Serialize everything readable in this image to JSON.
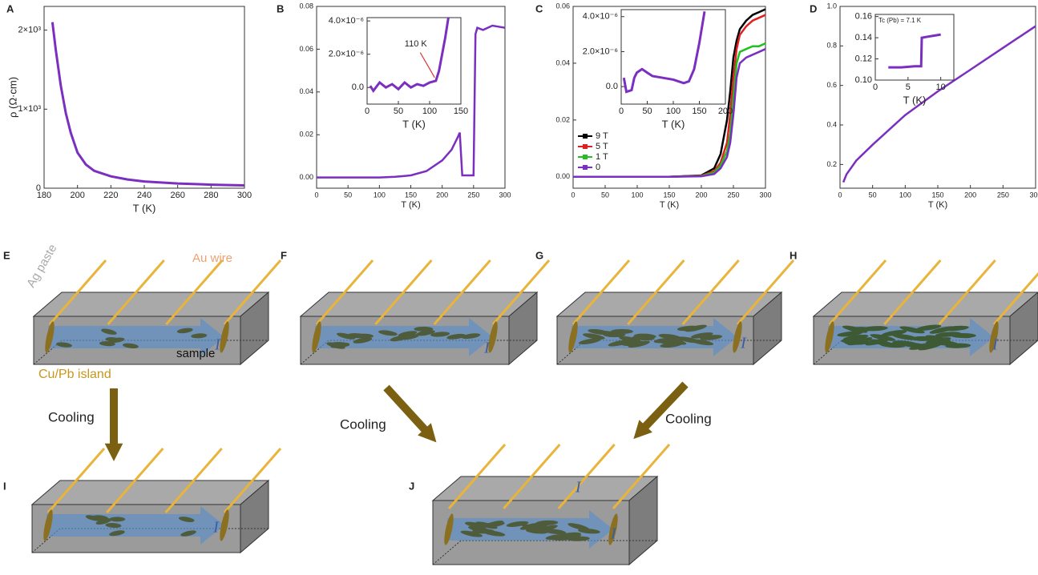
{
  "chart_data": [
    {
      "type": "line",
      "panel": "A",
      "xlabel": "T (K)",
      "ylabel": "ρ (Ω·cm)",
      "xlim": [
        180,
        300
      ],
      "xticks": [
        180,
        200,
        220,
        240,
        260,
        280,
        300
      ],
      "ylim": [
        0,
        2300
      ],
      "yticks": [
        0,
        {
          "value": 1000,
          "label": "1×10³"
        },
        {
          "value": 2000,
          "label": "2×10³"
        }
      ],
      "series": [
        {
          "color": "#7a2fc0",
          "x": [
            185,
            187,
            190,
            193,
            196,
            200,
            205,
            210,
            220,
            230,
            240,
            260,
            280,
            300
          ],
          "values": [
            2100,
            1750,
            1300,
            950,
            700,
            450,
            300,
            220,
            150,
            110,
            85,
            60,
            45,
            35
          ]
        }
      ]
    },
    {
      "type": "line",
      "panel": "B",
      "xlabel": "T (K)",
      "xlim": [
        0,
        300
      ],
      "xticks": [
        0,
        50,
        100,
        150,
        200,
        250,
        300
      ],
      "ylim": [
        -0.005,
        0.08
      ],
      "yticks": [
        {
          "value": 0,
          "label": "0.00"
        },
        0.02,
        0.04,
        0.06,
        0.08
      ],
      "series": [
        {
          "color": "#7a2fc0",
          "x": [
            0,
            25,
            50,
            75,
            100,
            125,
            150,
            175,
            200,
            215,
            225,
            228,
            232,
            240,
            250,
            253,
            256,
            265,
            280,
            300
          ],
          "values": [
            0,
            0,
            0,
            0,
            0,
            0.0003,
            0.001,
            0.003,
            0.008,
            0.013,
            0.019,
            0.021,
            0.001,
            0.001,
            0.001,
            0.067,
            0.07,
            0.069,
            0.071,
            0.07
          ]
        }
      ],
      "inset": {
        "xlabel": "T (K)",
        "xlim": [
          0,
          150
        ],
        "xticks": [
          0,
          50,
          100,
          150
        ],
        "ylim": [
          -1e-06,
          4.2e-06
        ],
        "yticks": [
          {
            "value": 0,
            "label": "0.0"
          },
          {
            "value": 2e-06,
            "label": "2.0×10⁻⁶"
          },
          {
            "value": 4e-06,
            "label": "4.0×10⁻⁶"
          }
        ],
        "annotation": "110 K",
        "series": [
          {
            "color": "#7a2fc0",
            "x": [
              5,
              10,
              20,
              30,
              40,
              50,
              60,
              70,
              80,
              90,
              100,
              110,
              115,
              120,
              125,
              130
            ],
            "values": [
              1e-07,
              -2e-07,
              3e-07,
              0,
              2e-07,
              -1e-07,
              3e-07,
              0,
              2e-07,
              1e-07,
              3e-07,
              4e-07,
              1e-06,
              2e-06,
              3e-06,
              4.2e-06
            ]
          }
        ]
      }
    },
    {
      "type": "line",
      "panel": "C",
      "xlabel": "T (K)",
      "xlim": [
        0,
        300
      ],
      "xticks": [
        0,
        50,
        100,
        150,
        200,
        250,
        300
      ],
      "ylim": [
        -0.004,
        0.06
      ],
      "yticks": [
        {
          "value": 0,
          "label": "0.00"
        },
        0.02,
        0.04,
        0.06
      ],
      "series": [
        {
          "name": "9 T",
          "color": "#000000",
          "x": [
            0,
            50,
            100,
            150,
            200,
            220,
            230,
            240,
            245,
            250,
            255,
            260,
            270,
            280,
            290,
            300
          ],
          "values": [
            0,
            0,
            0,
            0,
            0.0005,
            0.003,
            0.008,
            0.02,
            0.03,
            0.042,
            0.048,
            0.052,
            0.055,
            0.057,
            0.058,
            0.059
          ]
        },
        {
          "name": "5 T",
          "color": "#e02020",
          "x": [
            0,
            50,
            100,
            150,
            200,
            220,
            230,
            240,
            245,
            250,
            255,
            260,
            270,
            280,
            290,
            300
          ],
          "values": [
            0,
            0,
            0,
            0,
            0.0004,
            0.002,
            0.005,
            0.012,
            0.022,
            0.035,
            0.045,
            0.05,
            0.053,
            0.055,
            0.056,
            0.057
          ]
        },
        {
          "name": "1 T",
          "color": "#20c020",
          "x": [
            0,
            50,
            100,
            150,
            200,
            220,
            230,
            240,
            245,
            250,
            255,
            260,
            270,
            280,
            290,
            300
          ],
          "values": [
            0,
            0,
            0,
            0,
            0.0003,
            0.0015,
            0.004,
            0.009,
            0.015,
            0.028,
            0.04,
            0.044,
            0.045,
            0.046,
            0.046,
            0.047
          ]
        },
        {
          "name": "0",
          "color": "#7a2fc0",
          "x": [
            0,
            50,
            100,
            150,
            200,
            220,
            230,
            240,
            245,
            250,
            255,
            260,
            270,
            280,
            290,
            300
          ],
          "values": [
            0,
            0,
            0,
            0,
            0.0002,
            0.001,
            0.003,
            0.007,
            0.012,
            0.022,
            0.035,
            0.04,
            0.042,
            0.043,
            0.044,
            0.045
          ]
        }
      ],
      "inset": {
        "xlabel": "T (K)",
        "xlim": [
          0,
          200
        ],
        "xticks": [
          0,
          50,
          100,
          150,
          200
        ],
        "ylim": [
          -1e-06,
          4.4e-06
        ],
        "yticks": [
          {
            "value": 0,
            "label": "0.0"
          },
          {
            "value": 2e-06,
            "label": "2.0×10⁻⁶"
          },
          {
            "value": 4e-06,
            "label": "4.0×10⁻⁶"
          }
        ],
        "series": [
          {
            "color": "#7a2fc0",
            "x": [
              5,
              10,
              20,
              25,
              30,
              40,
              50,
              60,
              80,
              100,
              120,
              130,
              140,
              150,
              160
            ],
            "values": [
              5e-07,
              -3e-07,
              -2e-07,
              5e-07,
              8e-07,
              1e-06,
              8e-07,
              6e-07,
              5e-07,
              4e-07,
              2e-07,
              3e-07,
              1e-06,
              2.5e-06,
              4.3e-06
            ]
          }
        ]
      }
    },
    {
      "type": "line",
      "panel": "D",
      "xlabel": "T (K)",
      "xlim": [
        0,
        300
      ],
      "xticks": [
        0,
        50,
        100,
        150,
        200,
        250,
        300
      ],
      "ylim": [
        0.08,
        1.0
      ],
      "yticks": [
        0.2,
        0.4,
        0.6,
        0.8,
        {
          "value": 1,
          "label": "1.0"
        }
      ],
      "series": [
        {
          "color": "#7a2fc0",
          "x": [
            5,
            10,
            25,
            50,
            100,
            150,
            200,
            250,
            300
          ],
          "values": [
            0.11,
            0.15,
            0.22,
            0.3,
            0.45,
            0.57,
            0.68,
            0.79,
            0.9
          ]
        }
      ],
      "inset": {
        "xlabel": "T (K)",
        "xlim": [
          0,
          12
        ],
        "xticks": [
          0,
          5,
          10
        ],
        "ylim": [
          0.1,
          0.162
        ],
        "yticks": [
          {
            "value": 0.1,
            "label": "0.10"
          },
          0.12,
          0.14,
          {
            "value": 0.16,
            "label": "0.16"
          }
        ],
        "annotation": "Tc (Pb) = 7.1 K",
        "series": [
          {
            "color": "#7a2fc0",
            "x": [
              2,
              4,
              6,
              7,
              7.1,
              8,
              9,
              10
            ],
            "values": [
              0.112,
              0.112,
              0.113,
              0.113,
              0.14,
              0.141,
              0.142,
              0.143
            ]
          }
        ]
      }
    }
  ],
  "diagrams": {
    "panels": [
      "E",
      "F",
      "G",
      "H",
      "I",
      "J"
    ],
    "ag_paste": "Ag paste",
    "au_wire": "Au wire",
    "sample": "sample",
    "island": "Cu/Pb island",
    "current": [
      "I",
      "I",
      "I",
      "I",
      "I",
      "I",
      "I"
    ],
    "cooling": [
      "Cooling",
      "Cooling",
      "Cooling"
    ]
  }
}
